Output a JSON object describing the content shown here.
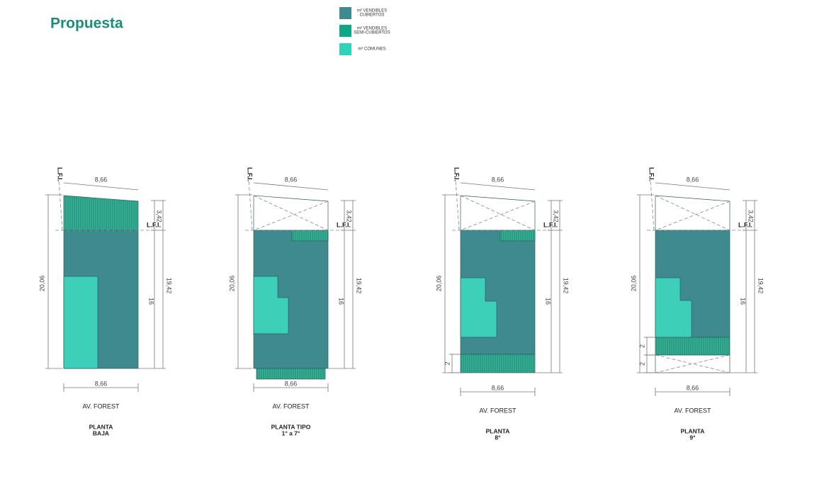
{
  "header": {
    "title": "Propuesta"
  },
  "legend": [
    {
      "lines": [
        "m² VENDIBLES",
        "CUBIERTOS"
      ]
    },
    {
      "lines": [
        "m² VENDIBLES",
        "SEMI-CUBIERTOS"
      ]
    },
    {
      "lines": [
        "m² COMUNES"
      ]
    }
  ],
  "plans": [
    {
      "lfi_top": "L.F.I.",
      "width_top": "8,66",
      "depth_front": "3,42",
      "lfi_side": "L.F.I.",
      "depth_total": "19,42",
      "depth_built": "16",
      "depth_left": "20,06",
      "width_bottom": "8,66",
      "street": "AV. FOREST",
      "title": [
        "PLANTA",
        "BAJA"
      ],
      "bottom_dims": []
    },
    {
      "lfi_top": "L.F.I.",
      "width_top": "8,66",
      "depth_front": "3,42",
      "lfi_side": "L.F.I.",
      "depth_total": "19,42",
      "depth_built": "16",
      "depth_left": "20,06",
      "width_bottom": "8,66",
      "street": "AV. FOREST",
      "title": [
        "PLANTA TIPO",
        "1° a 7°"
      ],
      "bottom_dims": []
    },
    {
      "lfi_top": "L.F.I.",
      "width_top": "8,66",
      "depth_front": "3,42",
      "lfi_side": "L.F.I.",
      "depth_total": "19,42",
      "depth_built": "16",
      "depth_left": "20,06",
      "width_bottom": "8,66",
      "street": "AV. FOREST",
      "title": [
        "PLANTA",
        "8°"
      ],
      "bottom_dims": [
        "2"
      ]
    },
    {
      "lfi_top": "L.F.I.",
      "width_top": "8,66",
      "depth_front": "3,42",
      "lfi_side": "L.F.I.",
      "depth_total": "19,42",
      "depth_built": "16",
      "depth_left": "20,06",
      "width_bottom": "8,66",
      "street": "AV. FOREST",
      "title": [
        "PLANTA",
        "9°"
      ],
      "bottom_dims": [
        "2",
        "2"
      ]
    }
  ]
}
